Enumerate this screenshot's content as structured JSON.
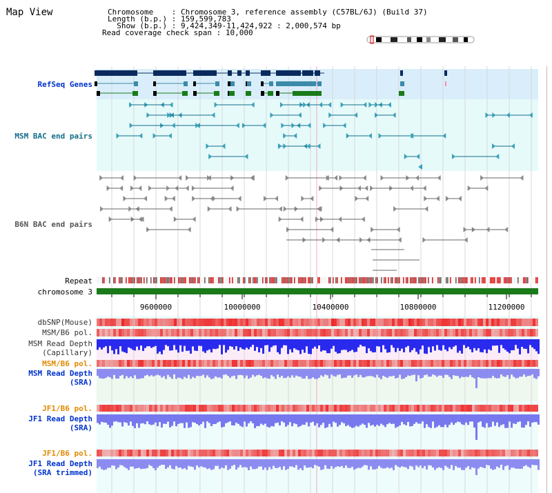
{
  "title": "Map View",
  "info": {
    "chromosome_label": "Chromosome",
    "chromosome_value": "Chromosome 3, reference assembly (C57BL/6J) (Build 37)",
    "length_label": "Length (b.p.)",
    "length_value": "159,599,783",
    "show_label": "Show (b.p.)",
    "show_value": "9,424,349-11,424,922 : 2,000,574 bp",
    "coverage_label": "Read coverage check span",
    "coverage_value": "10,000"
  },
  "tracks": {
    "refseq": "RefSeq Genes",
    "msm_bac": "MSM BAC end pairs",
    "b6n_bac": "B6N BAC end pairs",
    "repeat": "Repeat",
    "chromosome": "chromosome 3",
    "dbsnp": "dbSNP(Mouse)",
    "msm_b6_pol": "MSM/B6 pol.",
    "msm_depth_cap_1": "MSM Read Depth",
    "msm_depth_cap_2": "(Capillary)",
    "msm_b6_pol_2": "MSM/B6 pol.",
    "msm_depth_sra_1": "MSM Read Depth",
    "msm_depth_sra_2": "(SRA)",
    "jf1_b6_pol": "JF1/B6 pol.",
    "jf1_depth_sra_1": "JF1 Read Depth",
    "jf1_depth_sra_2": "(SRA)",
    "jf1_b6_pol_2": "JF1/B6 pol.",
    "jf1_depth_trim_1": "JF1 Read Depth",
    "jf1_depth_trim_2": "(SRA trimmed)"
  },
  "axis_ticks": [
    "9600000",
    "10000000",
    "10400000",
    "10800000",
    "11200000"
  ],
  "colors": {
    "refseq_bg": "#d9eefa",
    "bac_bg": "#e6fafa",
    "gene_dark": "#0a2a5e",
    "gene_mid": "#3a8aa8",
    "gene_green": "#1a7a1a",
    "msm_bac": "#126c8a",
    "b6n_bac": "#666666",
    "chromosome_bar": "#1a7a1a",
    "depth_blue": "#2a2aee",
    "depth_light": "#7878ee",
    "pol_red": "#ee3333"
  }
}
